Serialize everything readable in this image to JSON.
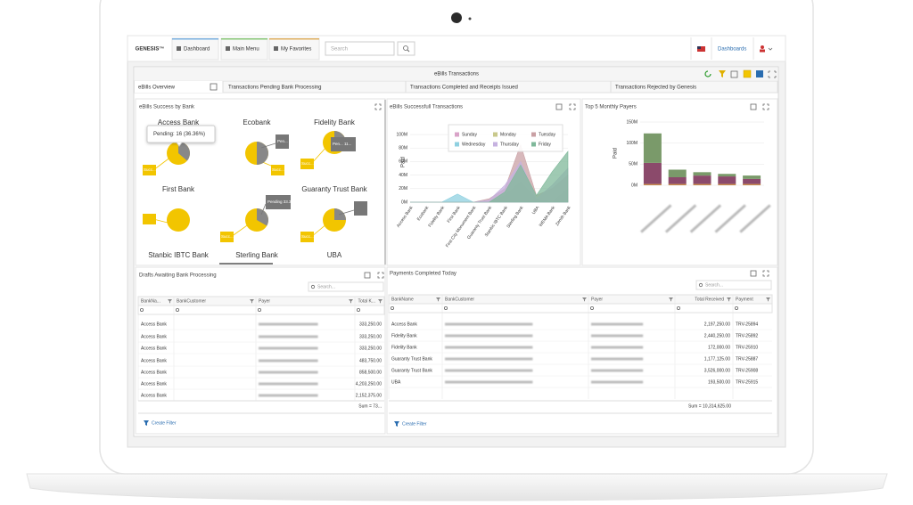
{
  "nav": {
    "brand": "GENESIS™",
    "tabs": [
      "Dashboard",
      "Main Menu",
      "My Favorites"
    ],
    "search_placeholder": "Search",
    "dashboards": "Dashboards"
  },
  "window": {
    "title": "eBills Transactions",
    "tabs": [
      "eBills Overview",
      "Transactions Pending Bank Processing",
      "Transactions Completed and Receipts Issued",
      "Transactions Rejected by Genesis"
    ]
  },
  "success_by_bank": {
    "title": "eBills Success by Bank",
    "tooltip": "Pending: 16 (36.36%)",
    "bank_labels": [
      "Access Bank",
      "Ecobank",
      "Fidelity Bank",
      "First Bank",
      "Guaranty Trust Bank",
      "Stanbic IBTC Bank",
      "Sterling Bank",
      "UBA"
    ],
    "pies": [
      {
        "pending": 36.36,
        "success_label": "Succ..."
      },
      {
        "pending": 50,
        "pending_label": "Pen...",
        "success_label": "Succ..."
      },
      {
        "pending": 30,
        "pending_label": "Pen... 11...",
        "success_label": "Succ..."
      },
      {
        "pending": 0
      },
      {
        "pending": 33.33,
        "pending_label": "Pending 33.33%",
        "success_label": "Succ..."
      },
      {
        "pending": 25,
        "success_label": "Succ..."
      }
    ]
  },
  "successful_transactions": {
    "title": "eBills Successfull Transactions",
    "y_label": "Paid",
    "ylim": [
      0,
      100000000
    ],
    "yticks": [
      {
        "value": 0,
        "label": "0M"
      },
      {
        "value": 20000000,
        "label": "20M"
      },
      {
        "value": 40000000,
        "label": "40M"
      },
      {
        "value": 60000000,
        "label": "60M"
      },
      {
        "value": 80000000,
        "label": "80M"
      },
      {
        "value": 100000000,
        "label": "100M"
      }
    ],
    "categories": [
      "Access Bank",
      "Ecobank",
      "Fidelity Bank",
      "First Bank",
      "First City Monument Bank",
      "Guaranty Trust Bank",
      "Stanbic IBTC Bank",
      "Sterling Bank",
      "UBA",
      "WEMA Bank",
      "Zenith Bank"
    ],
    "series": [
      {
        "name": "Sunday",
        "color": "#d9a3c8",
        "values": [
          0,
          0,
          0,
          0,
          0,
          0,
          0,
          15000000,
          0,
          0,
          0
        ]
      },
      {
        "name": "Monday",
        "color": "#c9c98c",
        "values": [
          0,
          0,
          0,
          0,
          0,
          0,
          10000000,
          30000000,
          5000000,
          0,
          20000000
        ]
      },
      {
        "name": "Tuesday",
        "color": "#c9a0a4",
        "values": [
          0,
          0,
          0,
          0,
          0,
          5000000,
          20000000,
          85000000,
          10000000,
          20000000,
          40000000
        ]
      },
      {
        "name": "Wednesday",
        "color": "#8fd0e0",
        "values": [
          0,
          0,
          0,
          12000000,
          0,
          0,
          0,
          0,
          0,
          0,
          0
        ]
      },
      {
        "name": "Thursday",
        "color": "#c6b2e0",
        "values": [
          0,
          0,
          0,
          0,
          0,
          3000000,
          25000000,
          60000000,
          5000000,
          25000000,
          50000000
        ]
      },
      {
        "name": "Friday",
        "color": "#7fb89a",
        "values": [
          0,
          0,
          0,
          0,
          0,
          0,
          15000000,
          55000000,
          10000000,
          45000000,
          75000000
        ]
      }
    ]
  },
  "top_payers": {
    "title": "Top 5 Monthly Payers",
    "y_label": "Paid",
    "ylim": [
      0,
      150000000
    ],
    "yticks": [
      {
        "value": 0,
        "label": "0M"
      },
      {
        "value": 50000000,
        "label": "50M"
      },
      {
        "value": 100000000,
        "label": "100M"
      },
      {
        "value": 150000000,
        "label": "150M"
      }
    ],
    "categories": [
      null,
      null,
      null,
      null,
      null
    ],
    "series": [
      {
        "color": "#c98a4a",
        "values": [
          3000000,
          3000000,
          3000000,
          3000000,
          3000000
        ]
      },
      {
        "color": "#8b4a6b",
        "values": [
          50000000,
          16000000,
          20000000,
          18000000,
          12000000
        ]
      },
      {
        "color": "#7a9a6a",
        "values": [
          70000000,
          18000000,
          8000000,
          6000000,
          8000000
        ]
      }
    ]
  },
  "drafts": {
    "title": "Drafts Awaiting Bank Processing",
    "search": "Search...",
    "columns": [
      "BankNa...",
      "BankCustomer",
      "Payer",
      "Total K..."
    ],
    "rows": [
      [
        "Access Bank",
        "333,250.00"
      ],
      [
        "Access Bank",
        "333,250.00"
      ],
      [
        "Access Bank",
        "333,250.00"
      ],
      [
        "Access Bank",
        "483,750.00"
      ],
      [
        "Access Bank",
        "858,500.00"
      ],
      [
        "Access Bank",
        "4,203,250.00"
      ],
      [
        "Access Bank",
        "2,152,375.00"
      ]
    ],
    "sum": "Sum = 73...",
    "create_filter": "Create Filter"
  },
  "payments": {
    "title": "Payments Completed Today",
    "search": "Search...",
    "columns": [
      "BankName",
      "BankCustomer",
      "Payer",
      "Total Received",
      "Payment"
    ],
    "rows": [
      [
        "Access Bank",
        "2,197,250.00",
        "TRV-25894"
      ],
      [
        "Fidelity Bank",
        "2,440,250.00",
        "TRV-25892"
      ],
      [
        "Fidelity Bank",
        "172,000.00",
        "TRV-25910"
      ],
      [
        "Guaranty Trust Bank",
        "1,177,125.00",
        "TRV-25887"
      ],
      [
        "Guaranty Trust Bank",
        "3,526,000.00",
        "TRV-25908"
      ],
      [
        "UBA",
        "193,500.00",
        "TRV-25915"
      ]
    ],
    "sum": "Sum = 10,314,625.00",
    "create_filter": "Create Filter"
  }
}
